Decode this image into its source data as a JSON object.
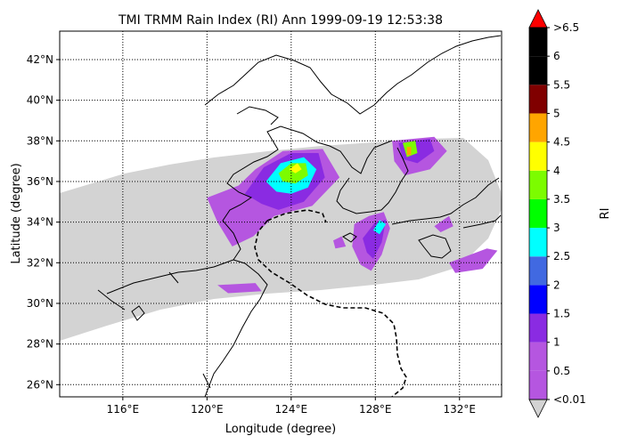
{
  "chart_data": {
    "type": "heatmap",
    "title": "TMI TRMM Rain Index (RI) Ann 1999-09-19 12:53:38",
    "xlabel": "Longitude (degree)",
    "ylabel": "Latitude (degree)",
    "xlim": [
      113,
      134
    ],
    "ylim": [
      25.4,
      43.4
    ],
    "x_ticks": [
      {
        "value": 116,
        "label": "116°E"
      },
      {
        "value": 120,
        "label": "120°E"
      },
      {
        "value": 124,
        "label": "124°E"
      },
      {
        "value": 128,
        "label": "128°E"
      },
      {
        "value": 132,
        "label": "132°E"
      }
    ],
    "y_ticks": [
      {
        "value": 26,
        "label": "26°N"
      },
      {
        "value": 28,
        "label": "28°N"
      },
      {
        "value": 30,
        "label": "30°N"
      },
      {
        "value": 32,
        "label": "32°N"
      },
      {
        "value": 34,
        "label": "34°N"
      },
      {
        "value": 36,
        "label": "36°N"
      },
      {
        "value": 38,
        "label": "38°N"
      },
      {
        "value": 40,
        "label": "40°N"
      },
      {
        "value": 42,
        "label": "42°N"
      }
    ],
    "grid": true,
    "grid_style": "dotted",
    "swath_color": "#d3d3d3",
    "colorbar": {
      "label": "RI",
      "under_label": "<0.01",
      "over_label": ">6.5",
      "under_color": "#d3d3d3",
      "over_color": "#ff0000",
      "tick_labels": [
        "0.5",
        "1",
        "1.5",
        "2",
        "2.5",
        "3",
        "3.5",
        "4",
        "4.5",
        "5",
        "5.5",
        "6"
      ],
      "colors": [
        "#b556e0",
        "#8a2be2",
        "#0000ff",
        "#4169e1",
        "#00ffff",
        "#00ff00",
        "#7cfc00",
        "#ffff00",
        "#ffa500",
        "#800000",
        "#000000",
        "#000000"
      ]
    },
    "rain_areas": [
      {
        "level": 0.5,
        "polygon": [
          [
            120.0,
            35.2
          ],
          [
            121.5,
            35.8
          ],
          [
            122.3,
            36.6
          ],
          [
            123.6,
            37.5
          ],
          [
            125.5,
            37.6
          ],
          [
            126.3,
            36.2
          ],
          [
            125.0,
            34.8
          ],
          [
            123.2,
            34.3
          ],
          [
            122.2,
            33.3
          ],
          [
            121.2,
            32.8
          ],
          [
            120.5,
            34.0
          ]
        ]
      },
      {
        "level": 1,
        "polygon": [
          [
            121.8,
            35.4
          ],
          [
            122.7,
            36.7
          ],
          [
            124.0,
            37.4
          ],
          [
            125.3,
            37.4
          ],
          [
            125.6,
            36.2
          ],
          [
            124.6,
            35.0
          ],
          [
            123.4,
            34.6
          ],
          [
            122.6,
            34.9
          ]
        ]
      },
      {
        "level": 2.5,
        "polygon": [
          [
            122.8,
            36.0
          ],
          [
            123.5,
            36.9
          ],
          [
            124.6,
            37.2
          ],
          [
            125.2,
            36.6
          ],
          [
            124.8,
            35.7
          ],
          [
            124.0,
            35.4
          ],
          [
            123.3,
            35.5
          ]
        ]
      },
      {
        "level": 3.5,
        "polygon": [
          [
            123.4,
            36.4
          ],
          [
            124.0,
            36.9
          ],
          [
            124.7,
            36.9
          ],
          [
            124.8,
            36.3
          ],
          [
            124.2,
            35.9
          ],
          [
            123.6,
            36.0
          ]
        ]
      },
      {
        "level": 4,
        "polygon": [
          [
            123.9,
            36.6
          ],
          [
            124.3,
            36.9
          ],
          [
            124.5,
            36.6
          ],
          [
            124.2,
            36.4
          ]
        ]
      },
      {
        "level": 0.5,
        "polygon": [
          [
            127.0,
            33.9
          ],
          [
            127.7,
            34.3
          ],
          [
            128.4,
            34.5
          ],
          [
            128.7,
            33.7
          ],
          [
            128.3,
            32.4
          ],
          [
            127.8,
            31.6
          ],
          [
            127.3,
            31.9
          ],
          [
            126.9,
            32.8
          ]
        ]
      },
      {
        "level": 1,
        "polygon": [
          [
            127.4,
            33.2
          ],
          [
            128.0,
            34.0
          ],
          [
            128.5,
            34.1
          ],
          [
            128.3,
            33.0
          ],
          [
            127.9,
            32.2
          ],
          [
            127.6,
            32.5
          ]
        ]
      },
      {
        "level": 2.5,
        "polygon": [
          [
            127.9,
            33.6
          ],
          [
            128.2,
            34.1
          ],
          [
            128.5,
            33.9
          ],
          [
            128.2,
            33.4
          ]
        ]
      },
      {
        "level": 0.5,
        "polygon": [
          [
            128.8,
            38.0
          ],
          [
            130.8,
            38.2
          ],
          [
            131.4,
            37.5
          ],
          [
            130.6,
            36.6
          ],
          [
            129.4,
            36.3
          ],
          [
            128.9,
            37.0
          ]
        ]
      },
      {
        "level": 1,
        "polygon": [
          [
            129.1,
            37.9
          ],
          [
            130.6,
            38.1
          ],
          [
            130.8,
            37.5
          ],
          [
            130.0,
            36.9
          ],
          [
            129.3,
            37.1
          ]
        ]
      },
      {
        "level": 3.5,
        "polygon": [
          [
            129.3,
            37.9
          ],
          [
            129.9,
            38.0
          ],
          [
            130.0,
            37.4
          ],
          [
            129.5,
            37.2
          ]
        ]
      },
      {
        "level": 4.5,
        "polygon": [
          [
            129.5,
            37.7
          ],
          [
            129.7,
            37.7
          ],
          [
            129.7,
            37.3
          ],
          [
            129.5,
            37.3
          ]
        ]
      },
      {
        "level": 0.5,
        "polygon": [
          [
            120.5,
            30.9
          ],
          [
            122.3,
            31.0
          ],
          [
            122.6,
            30.6
          ],
          [
            121.0,
            30.5
          ]
        ]
      },
      {
        "level": 0.5,
        "polygon": [
          [
            126.0,
            33.1
          ],
          [
            126.4,
            33.3
          ],
          [
            126.6,
            32.8
          ],
          [
            126.1,
            32.7
          ]
        ]
      },
      {
        "level": 0.5,
        "polygon": [
          [
            131.5,
            32.0
          ],
          [
            133.3,
            32.7
          ],
          [
            133.8,
            32.6
          ],
          [
            133.1,
            31.7
          ],
          [
            131.8,
            31.5
          ]
        ]
      },
      {
        "level": 0.5,
        "polygon": [
          [
            130.8,
            33.8
          ],
          [
            131.5,
            34.3
          ],
          [
            131.7,
            33.8
          ],
          [
            131.1,
            33.5
          ]
        ]
      }
    ]
  }
}
